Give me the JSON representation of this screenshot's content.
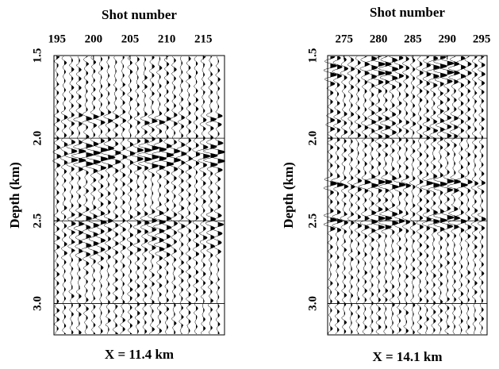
{
  "chart_data": [
    {
      "type": "wiggle",
      "title": "Shot number",
      "ylabel": "Depth (km)",
      "caption": "X = 11.4 km",
      "xlim": [
        194.6,
        217.9
      ],
      "xticks": [
        195,
        200,
        205,
        210,
        215
      ],
      "ylim": [
        1.5,
        3.19
      ],
      "yticks": [
        1.5,
        {
          "value": 2,
          "label": "2.0"
        },
        2.5,
        {
          "value": 3,
          "label": "3.0"
        }
      ],
      "grid": true
    },
    {
      "type": "wiggle",
      "title": "Shot number",
      "ylabel": "Depth (km)",
      "caption": "X = 14.1 km",
      "xlim": [
        272.6,
        295.8
      ],
      "xticks": [
        275,
        280,
        285,
        290,
        295
      ],
      "ylim": [
        1.5,
        3.19
      ],
      "yticks": [
        1.5,
        {
          "value": 2,
          "label": "2.0"
        },
        2.5,
        {
          "value": 3,
          "label": "3.0"
        }
      ],
      "grid": true
    }
  ]
}
